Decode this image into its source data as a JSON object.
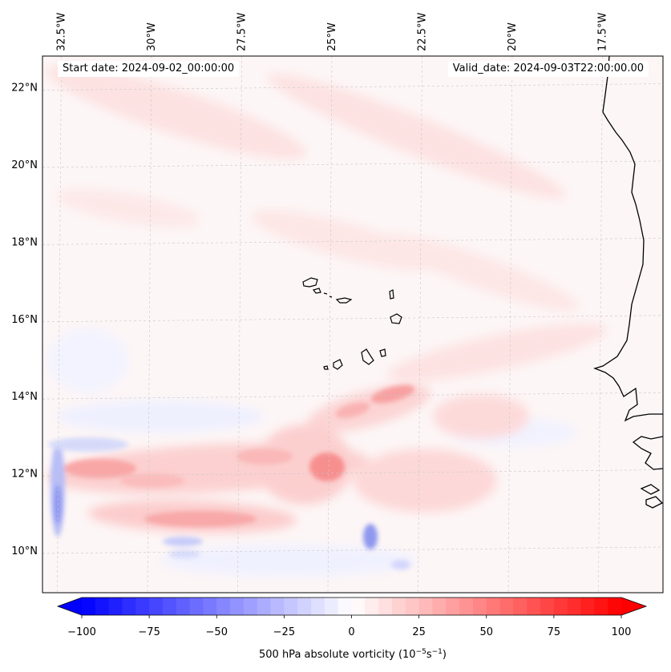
{
  "header": {
    "start_label": "Start date: 2024-09-02_00:00:00",
    "valid_label": "Valid_date: 2024-09-03T22:00:00.00"
  },
  "map": {
    "extent": {
      "lon_min": -33.0,
      "lon_max": -15.8,
      "lat_min": 8.9,
      "lat_max": 22.8
    },
    "lat_labels": [
      {
        "value": 22,
        "label": "22°N"
      },
      {
        "value": 20,
        "label": "20°N"
      },
      {
        "value": 18,
        "label": "18°N"
      },
      {
        "value": 16,
        "label": "16°N"
      },
      {
        "value": 14,
        "label": "14°N"
      },
      {
        "value": 12,
        "label": "12°N"
      },
      {
        "value": 10,
        "label": "10°N"
      }
    ],
    "lon_labels": [
      {
        "value": -32.5,
        "label": "32.5°W"
      },
      {
        "value": -30.0,
        "label": "30°W"
      },
      {
        "value": -27.5,
        "label": "27.5°W"
      },
      {
        "value": -25.0,
        "label": "25°W"
      },
      {
        "value": -22.5,
        "label": "22.5°W"
      },
      {
        "value": -20.0,
        "label": "20°W"
      },
      {
        "value": -17.5,
        "label": "17.5°W"
      }
    ]
  },
  "colorbar": {
    "min": -100,
    "max": 100,
    "step": 5,
    "ticks": [
      "−100",
      "−75",
      "−50",
      "−25",
      "0",
      "25",
      "50",
      "75",
      "100"
    ],
    "label": "500 hPa absolute vorticity (10",
    "label_exp1": "−5",
    "label_mid": "s",
    "label_exp2": "−1",
    "label_end": ")",
    "colors": {
      "negative": "#0000ff",
      "neutral": "#ffffff",
      "positive": "#ff0000"
    }
  }
}
